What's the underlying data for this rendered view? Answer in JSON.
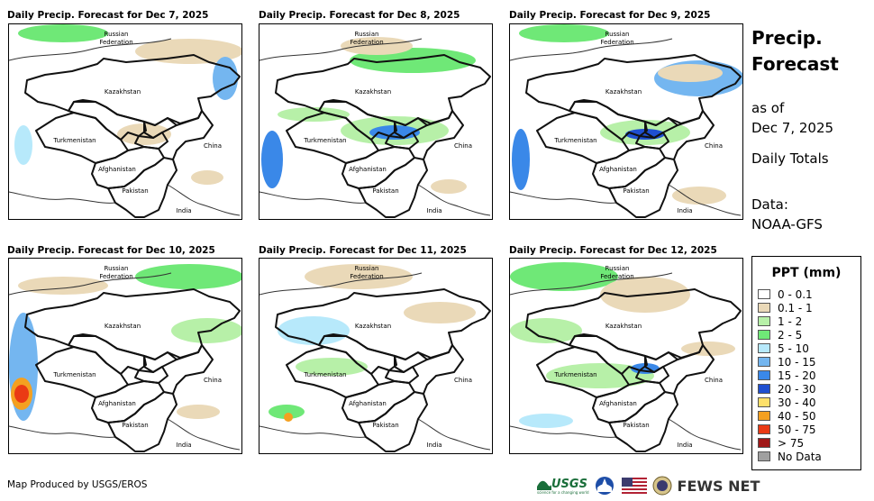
{
  "panels": [
    {
      "title": "Daily Precip. Forecast for Dec 7, 2025"
    },
    {
      "title": "Daily Precip. Forecast for Dec 8, 2025"
    },
    {
      "title": "Daily Precip. Forecast for Dec 9, 2025"
    },
    {
      "title": "Daily Precip. Forecast for Dec 10, 2025"
    },
    {
      "title": "Daily Precip. Forecast for Dec 11, 2025"
    },
    {
      "title": "Daily Precip. Forecast for Dec 12, 2025"
    }
  ],
  "map_labels": {
    "russia_line1": "Russian",
    "russia_line2": "Federation",
    "kazakhstan": "Kazakhstan",
    "turkmenistan": "Turkmenistan",
    "china": "China",
    "afghanistan": "Afghanistan",
    "pakistan": "Pakistan",
    "india": "India"
  },
  "sidebar": {
    "title_line1": "Precip.",
    "title_line2": "Forecast",
    "asof_line1": "as of",
    "asof_line2": "Dec 7, 2025",
    "totals": "Daily Totals",
    "data_line1": "Data:",
    "data_line2": "NOAA-GFS"
  },
  "legend": {
    "title": "PPT (mm)",
    "items": [
      {
        "label": "0 - 0.1",
        "color": "#ffffff"
      },
      {
        "label": "0.1 - 1",
        "color": "#ead9b8"
      },
      {
        "label": "1 - 2",
        "color": "#b7f0a8"
      },
      {
        "label": "2 - 5",
        "color": "#6fe877"
      },
      {
        "label": "5 - 10",
        "color": "#b7e9fb"
      },
      {
        "label": "10 - 15",
        "color": "#74b6f0"
      },
      {
        "label": "15 - 20",
        "color": "#3a88e8"
      },
      {
        "label": "20 - 30",
        "color": "#1f4fd0"
      },
      {
        "label": "30 - 40",
        "color": "#fde06a"
      },
      {
        "label": "40 - 50",
        "color": "#f4a020"
      },
      {
        "label": "50 - 75",
        "color": "#ea3a14"
      },
      {
        "label": "> 75",
        "color": "#a01818"
      },
      {
        "label": "No Data",
        "color": "#a0a0a0"
      }
    ]
  },
  "credit": "Map Produced by USGS/EROS",
  "logos": {
    "usgs": "USGS",
    "usgs_tag": "science for a changing world",
    "fewsnet": "FEWS NET"
  }
}
